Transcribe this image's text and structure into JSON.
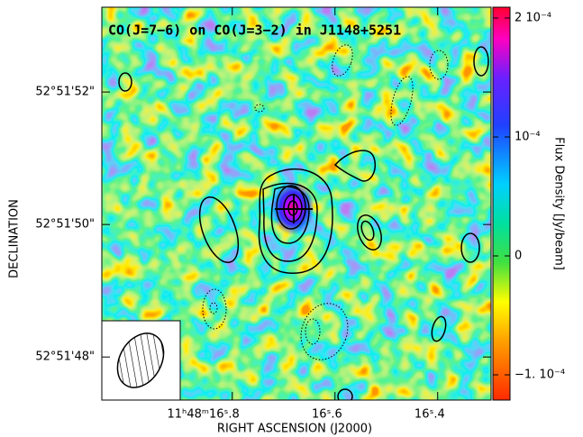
{
  "chart_data": {
    "type": "image",
    "title": "CO(J=7−6) on CO(J=3−2) in J1148+5251",
    "x_label": "RIGHT ASCENSION (J2000)",
    "y_label": "DECLINATION",
    "colorbar_label": "Flux Density [Jy/beam]",
    "xlim": [
      17.054,
      16.296
    ],
    "xticks": [
      {
        "value": 16.8,
        "label": "11ʰ48ᵐ16ˢ.8"
      },
      {
        "value": 16.6,
        "label": "16ˢ.6"
      },
      {
        "value": 16.4,
        "label": "16ˢ.4"
      }
    ],
    "ylim": [
      47.35,
      53.28
    ],
    "yticks": [
      {
        "value": 48,
        "label": "52°51'48\""
      },
      {
        "value": 50,
        "label": "52°51'50\""
      },
      {
        "value": 52,
        "label": "52°51'52\""
      }
    ],
    "zlim": [
      -0.0001212,
      0.0002091
    ],
    "zticks": [
      {
        "value": -0.0001,
        "label": "−1. 10⁻⁴"
      },
      0,
      {
        "value": 0.0001,
        "label": "10⁻⁴"
      },
      {
        "value": 0.0002,
        "label": "2 10⁻⁴"
      }
    ]
  }
}
